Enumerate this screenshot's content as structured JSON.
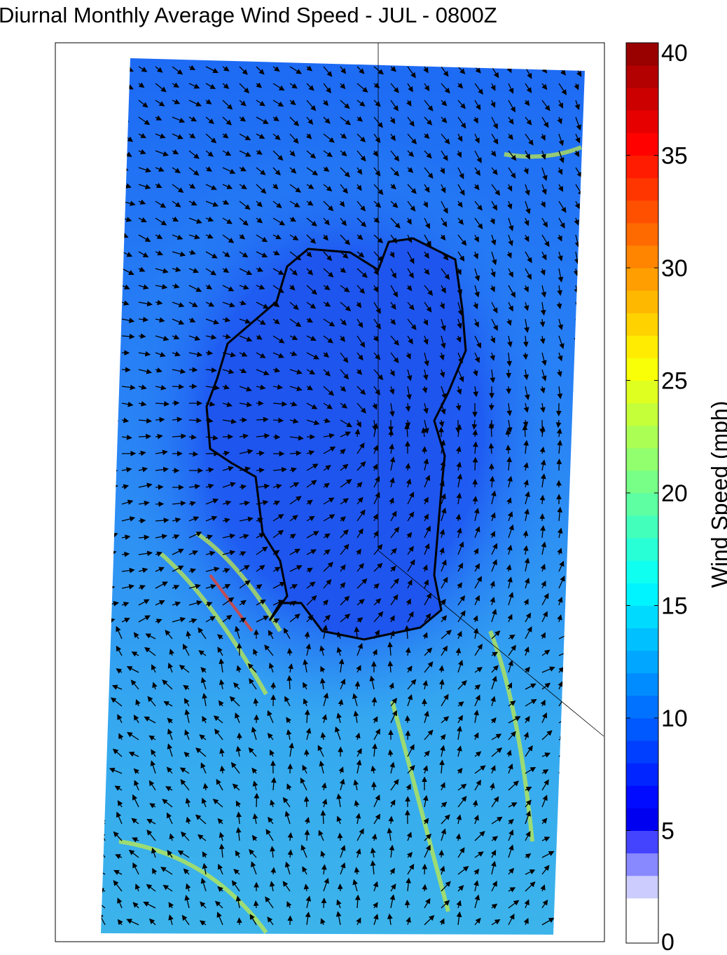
{
  "title": "Diurnal Monthly Average Wind Speed - JUL - 0800Z",
  "colorbar": {
    "label": "Wind Speed (mph)",
    "lim": [
      0,
      40
    ],
    "ticks": [
      0,
      5,
      10,
      15,
      20,
      25,
      30,
      35,
      40
    ]
  }
}
